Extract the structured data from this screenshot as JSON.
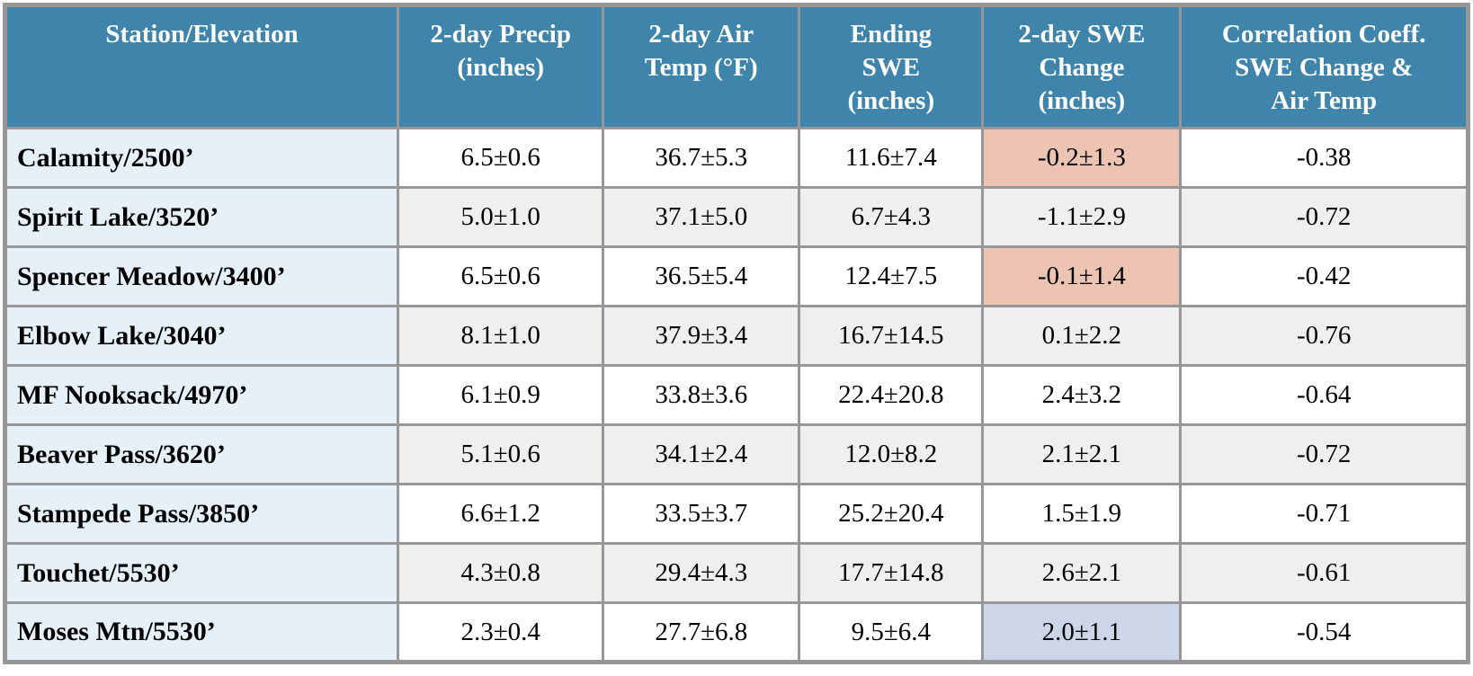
{
  "colors": {
    "header_bg": "#3e84ab",
    "header_text": "#ffffff",
    "station_column_bg": "#e5f0f9",
    "row_bg": "#ffffff",
    "row_alt_bg": "#efefee",
    "highlight_swe_decrease": "#edc4b2",
    "highlight_swe_increase": "#cdd6e9",
    "grid": "#97979a"
  },
  "table": {
    "columns": [
      {
        "id": "station",
        "lines": [
          "Station/Elevation"
        ]
      },
      {
        "id": "precip",
        "lines": [
          "2-day Precip",
          "(inches)"
        ]
      },
      {
        "id": "air_temp",
        "lines": [
          "2-day Air",
          "Temp (°F)"
        ]
      },
      {
        "id": "ending_swe",
        "lines": [
          "Ending",
          "SWE",
          "(inches)"
        ]
      },
      {
        "id": "swe_change",
        "lines": [
          "2-day SWE",
          "Change",
          "(inches)"
        ]
      },
      {
        "id": "correlation",
        "lines": [
          "Correlation Coeff.",
          "SWE Change &",
          "Air Temp"
        ]
      }
    ],
    "rows": [
      {
        "station": "Calamity/2500’",
        "precip": "6.5±0.6",
        "air_temp": "36.7±5.3",
        "ending_swe": "11.6±7.4",
        "swe_change": "-0.2±1.3",
        "swe_change_highlight": "decrease",
        "correlation": "-0.38"
      },
      {
        "station": "Spirit Lake/3520’",
        "precip": "5.0±1.0",
        "air_temp": "37.1±5.0",
        "ending_swe": "6.7±4.3",
        "swe_change": "-1.1±2.9",
        "swe_change_highlight": "decrease",
        "correlation": "-0.72"
      },
      {
        "station": "Spencer Meadow/3400’",
        "precip": "6.5±0.6",
        "air_temp": "36.5±5.4",
        "ending_swe": "12.4±7.5",
        "swe_change": "-0.1±1.4",
        "swe_change_highlight": "decrease",
        "correlation": "-0.42"
      },
      {
        "station": "Elbow Lake/3040’",
        "precip": "8.1±1.0",
        "air_temp": "37.9±3.4",
        "ending_swe": "16.7±14.5",
        "swe_change": "0.1±2.2",
        "swe_change_highlight": null,
        "correlation": "-0.76"
      },
      {
        "station": "MF Nooksack/4970’",
        "precip": "6.1±0.9",
        "air_temp": "33.8±3.6",
        "ending_swe": "22.4±20.8",
        "swe_change": "2.4±3.2",
        "swe_change_highlight": null,
        "correlation": "-0.64"
      },
      {
        "station": "Beaver Pass/3620’",
        "precip": "5.1±0.6",
        "air_temp": "34.1±2.4",
        "ending_swe": "12.0±8.2",
        "swe_change": "2.1±2.1",
        "swe_change_highlight": null,
        "correlation": "-0.72"
      },
      {
        "station": "Stampede Pass/3850’",
        "precip": "6.6±1.2",
        "air_temp": "33.5±3.7",
        "ending_swe": "25.2±20.4",
        "swe_change": "1.5±1.9",
        "swe_change_highlight": null,
        "correlation": "-0.71"
      },
      {
        "station": "Touchet/5530’",
        "precip": "4.3±0.8",
        "air_temp": "29.4±4.3",
        "ending_swe": "17.7±14.8",
        "swe_change": "2.6±2.1",
        "swe_change_highlight": "increase",
        "correlation": "-0.61"
      },
      {
        "station": "Moses Mtn/5530’",
        "precip": "2.3±0.4",
        "air_temp": "27.7±6.8",
        "ending_swe": "9.5±6.4",
        "swe_change": "2.0±1.1",
        "swe_change_highlight": "increase",
        "correlation": "-0.54"
      }
    ]
  }
}
